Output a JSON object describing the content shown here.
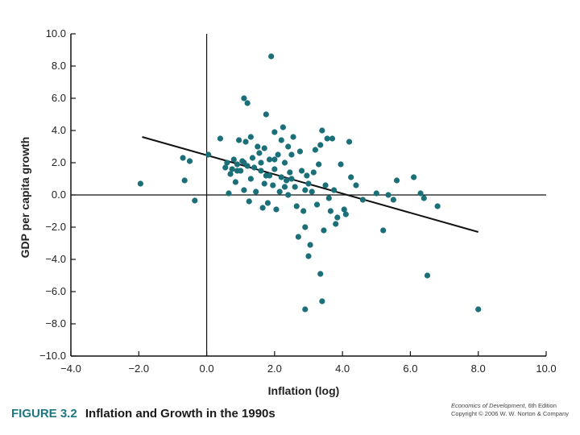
{
  "chart_data": {
    "type": "scatter",
    "xlabel": "Inflation (log)",
    "ylabel": "GDP per capita growth",
    "xlim": [
      -4.0,
      10.0
    ],
    "ylim": [
      -10.0,
      10.0
    ],
    "x_ticks": [
      "−4.0",
      "−2.0",
      "0.0",
      "2.0",
      "4.0",
      "6.0",
      "8.0",
      "10.0"
    ],
    "y_ticks": [
      "10.0",
      "8.0",
      "6.0",
      "4.0",
      "2.0",
      "0.0",
      "−2.0",
      "−4.0",
      "−6.0",
      "−8.0",
      "−10.0"
    ],
    "trend_line": {
      "x": [
        -1.9,
        8.0
      ],
      "y": [
        3.6,
        -2.3
      ]
    },
    "points": [
      [
        -1.95,
        0.7
      ],
      [
        -0.7,
        2.3
      ],
      [
        -0.65,
        0.9
      ],
      [
        -0.5,
        2.1
      ],
      [
        -0.35,
        -0.35
      ],
      [
        0.05,
        2.5
      ],
      [
        0.4,
        3.5
      ],
      [
        0.55,
        1.7
      ],
      [
        0.6,
        2.0
      ],
      [
        0.65,
        0.1
      ],
      [
        0.7,
        1.3
      ],
      [
        0.75,
        1.6
      ],
      [
        0.8,
        2.2
      ],
      [
        0.85,
        0.8
      ],
      [
        0.9,
        1.9
      ],
      [
        0.95,
        3.4
      ],
      [
        1.0,
        1.5
      ],
      [
        1.05,
        2.1
      ],
      [
        1.1,
        0.3
      ],
      [
        1.1,
        6.0
      ],
      [
        1.15,
        3.3
      ],
      [
        1.2,
        5.7
      ],
      [
        1.2,
        1.8
      ],
      [
        1.25,
        -0.4
      ],
      [
        1.3,
        1.0
      ],
      [
        1.3,
        3.6
      ],
      [
        1.35,
        2.3
      ],
      [
        1.4,
        1.7
      ],
      [
        1.45,
        0.2
      ],
      [
        1.5,
        3.0
      ],
      [
        1.55,
        2.6
      ],
      [
        1.6,
        1.5
      ],
      [
        1.65,
        -0.8
      ],
      [
        1.7,
        2.9
      ],
      [
        1.7,
        0.7
      ],
      [
        1.75,
        5.0
      ],
      [
        1.8,
        -0.5
      ],
      [
        1.85,
        2.2
      ],
      [
        1.85,
        1.2
      ],
      [
        1.9,
        8.6
      ],
      [
        1.95,
        0.6
      ],
      [
        2.0,
        3.9
      ],
      [
        2.0,
        1.6
      ],
      [
        2.05,
        -0.9
      ],
      [
        2.1,
        2.5
      ],
      [
        2.15,
        0.2
      ],
      [
        2.2,
        3.4
      ],
      [
        2.2,
        1.1
      ],
      [
        2.25,
        4.2
      ],
      [
        2.3,
        2.0
      ],
      [
        2.35,
        0.9
      ],
      [
        2.4,
        0.0
      ],
      [
        2.4,
        3.0
      ],
      [
        2.45,
        1.4
      ],
      [
        2.5,
        2.5
      ],
      [
        2.55,
        3.6
      ],
      [
        2.6,
        0.5
      ],
      [
        2.65,
        -0.7
      ],
      [
        2.7,
        -2.6
      ],
      [
        2.75,
        2.7
      ],
      [
        2.8,
        1.5
      ],
      [
        2.85,
        -1.0
      ],
      [
        2.9,
        -2.0
      ],
      [
        2.95,
        1.2
      ],
      [
        3.0,
        0.7
      ],
      [
        3.0,
        -3.8
      ],
      [
        3.05,
        -3.1
      ],
      [
        3.1,
        0.2
      ],
      [
        3.15,
        1.4
      ],
      [
        3.2,
        2.8
      ],
      [
        3.25,
        -0.6
      ],
      [
        3.3,
        1.9
      ],
      [
        3.35,
        3.1
      ],
      [
        3.4,
        4.0
      ],
      [
        3.45,
        -2.2
      ],
      [
        3.5,
        0.6
      ],
      [
        3.55,
        3.5
      ],
      [
        3.6,
        -0.2
      ],
      [
        3.65,
        -1.0
      ],
      [
        3.7,
        3.5
      ],
      [
        3.75,
        0.3
      ],
      [
        3.8,
        -1.8
      ],
      [
        3.85,
        -1.4
      ],
      [
        3.95,
        1.9
      ],
      [
        4.05,
        -0.9
      ],
      [
        4.1,
        -1.2
      ],
      [
        4.2,
        3.3
      ],
      [
        4.25,
        1.1
      ],
      [
        4.4,
        0.6
      ],
      [
        4.6,
        -0.3
      ],
      [
        5.0,
        0.1
      ],
      [
        5.2,
        -2.2
      ],
      [
        5.35,
        0.0
      ],
      [
        5.5,
        -0.3
      ],
      [
        5.6,
        0.9
      ],
      [
        6.1,
        1.1
      ],
      [
        6.3,
        0.1
      ],
      [
        6.4,
        -0.2
      ],
      [
        6.5,
        -5.0
      ],
      [
        6.8,
        -0.7
      ],
      [
        2.9,
        -7.1
      ],
      [
        3.4,
        -6.6
      ],
      [
        3.35,
        -4.9
      ],
      [
        8.0,
        -7.1
      ],
      [
        2.0,
        2.2
      ],
      [
        1.1,
        2.0
      ],
      [
        0.9,
        1.5
      ],
      [
        2.5,
        1.0
      ],
      [
        1.6,
        2.0
      ],
      [
        2.3,
        0.5
      ],
      [
        2.9,
        0.3
      ],
      [
        1.75,
        1.2
      ]
    ]
  },
  "caption": {
    "figure_number": "FIGURE 3.2",
    "title": "Inflation and Growth in the 1990s"
  },
  "credit": {
    "book": "Economics of Development",
    "edition": ", 6th Edition",
    "copyright": "Copyright © 2006 W. W. Norton & Company"
  },
  "colors": {
    "point": "#1a6f78",
    "axis": "#111111",
    "trend": "#111111",
    "accent": "#1e7680"
  }
}
